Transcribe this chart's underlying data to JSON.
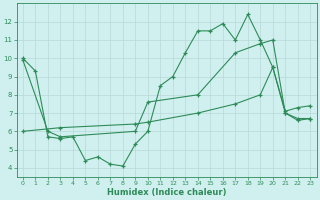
{
  "line1_x": [
    0,
    1,
    2,
    3,
    4,
    5,
    6,
    7,
    8,
    9,
    10,
    11,
    12,
    13,
    14,
    15,
    16,
    17,
    18,
    19,
    20,
    21,
    22,
    23
  ],
  "line1_y": [
    10.0,
    9.3,
    5.7,
    5.6,
    5.7,
    4.4,
    4.6,
    4.2,
    4.1,
    5.3,
    6.0,
    8.5,
    9.0,
    10.3,
    11.5,
    11.5,
    11.9,
    11.0,
    12.4,
    11.0,
    9.5,
    7.0,
    6.7,
    6.7
  ],
  "line2_x": [
    0,
    2,
    3,
    9,
    10,
    14,
    17,
    19,
    20,
    21,
    22,
    23
  ],
  "line2_y": [
    9.9,
    6.0,
    5.7,
    6.0,
    7.6,
    8.0,
    10.3,
    10.8,
    11.0,
    7.0,
    6.6,
    6.7
  ],
  "line3_x": [
    0,
    3,
    9,
    10,
    14,
    17,
    19,
    20,
    21,
    22,
    23
  ],
  "line3_y": [
    6.0,
    6.2,
    6.4,
    6.5,
    7.0,
    7.5,
    8.0,
    9.5,
    7.1,
    7.3,
    7.4
  ],
  "line_color": "#2e8b57",
  "bg_color": "#d0f0f0",
  "grid_color": "#b8d8d8",
  "xlabel": "Humidex (Indice chaleur)",
  "ylim": [
    3.5,
    13
  ],
  "xlim": [
    -0.5,
    23.5
  ],
  "yticks": [
    4,
    5,
    6,
    7,
    8,
    9,
    10,
    11,
    12
  ],
  "xticks": [
    0,
    1,
    2,
    3,
    4,
    5,
    6,
    7,
    8,
    9,
    10,
    11,
    12,
    13,
    14,
    15,
    16,
    17,
    18,
    19,
    20,
    21,
    22,
    23
  ]
}
